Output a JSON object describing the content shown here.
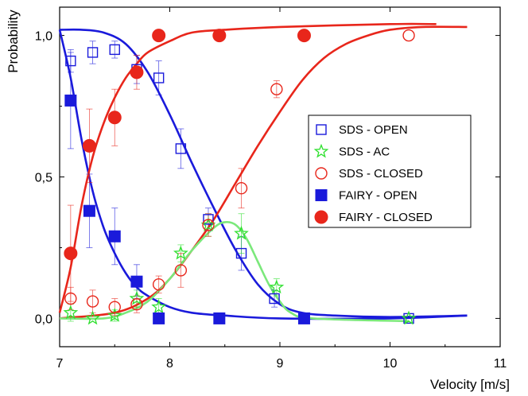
{
  "chart_data": {
    "type": "scatter",
    "title": "",
    "xlabel": "Velocity [m/s]",
    "ylabel": "Probability",
    "xlim": [
      7,
      11
    ],
    "ylim": [
      -0.1,
      1.1
    ],
    "x_ticks": [
      7,
      8,
      9,
      10,
      11
    ],
    "x_tick_labels": [
      "7",
      "8",
      "9",
      "10",
      "11"
    ],
    "y_ticks": [
      0.0,
      0.5,
      1.0
    ],
    "y_tick_labels": [
      "0,0",
      "0,5",
      "1,0"
    ],
    "grid": false,
    "legend_position": "center-right",
    "series": [
      {
        "name": "SDS - OPEN",
        "marker": "open-square",
        "color": "#1a1adb",
        "points": [
          {
            "x": 7.1,
            "y": 0.91,
            "err": 0.04
          },
          {
            "x": 7.3,
            "y": 0.94,
            "err": 0.04
          },
          {
            "x": 7.5,
            "y": 0.95,
            "err": 0.03
          },
          {
            "x": 7.7,
            "y": 0.88,
            "err": 0.05
          },
          {
            "x": 7.9,
            "y": 0.85,
            "err": 0.06
          },
          {
            "x": 8.1,
            "y": 0.6,
            "err": 0.07
          },
          {
            "x": 8.35,
            "y": 0.35,
            "err": 0.04
          },
          {
            "x": 8.65,
            "y": 0.23,
            "err": 0.06
          },
          {
            "x": 8.95,
            "y": 0.07,
            "err": 0.03
          },
          {
            "x": 10.17,
            "y": 0.0,
            "err": 0.0
          }
        ]
      },
      {
        "name": "SDS - AC",
        "marker": "open-star",
        "color": "#2ee02e",
        "points": [
          {
            "x": 7.1,
            "y": 0.02,
            "err": 0.03
          },
          {
            "x": 7.3,
            "y": 0.0,
            "err": 0.0
          },
          {
            "x": 7.5,
            "y": 0.01,
            "err": 0.02
          },
          {
            "x": 7.7,
            "y": 0.07,
            "err": 0.03
          },
          {
            "x": 7.9,
            "y": 0.04,
            "err": 0.03
          },
          {
            "x": 8.1,
            "y": 0.23,
            "err": 0.03
          },
          {
            "x": 8.35,
            "y": 0.33,
            "err": 0.04
          },
          {
            "x": 8.65,
            "y": 0.3,
            "err": 0.07
          },
          {
            "x": 8.97,
            "y": 0.11,
            "err": 0.03
          },
          {
            "x": 10.17,
            "y": 0.0,
            "err": 0.0
          }
        ]
      },
      {
        "name": "SDS - CLOSED",
        "marker": "open-circle",
        "color": "#e8261b",
        "points": [
          {
            "x": 7.1,
            "y": 0.07,
            "err": 0.04
          },
          {
            "x": 7.3,
            "y": 0.06,
            "err": 0.04
          },
          {
            "x": 7.5,
            "y": 0.04,
            "err": 0.03
          },
          {
            "x": 7.7,
            "y": 0.05,
            "err": 0.03
          },
          {
            "x": 7.9,
            "y": 0.12,
            "err": 0.03
          },
          {
            "x": 8.1,
            "y": 0.17,
            "err": 0.06
          },
          {
            "x": 8.35,
            "y": 0.33,
            "err": 0.04
          },
          {
            "x": 8.65,
            "y": 0.46,
            "err": 0.07
          },
          {
            "x": 8.97,
            "y": 0.81,
            "err": 0.03
          },
          {
            "x": 10.17,
            "y": 1.0,
            "err": 0.0
          }
        ]
      },
      {
        "name": "FAIRY - OPEN",
        "marker": "filled-square",
        "color": "#1a1adb",
        "points": [
          {
            "x": 7.1,
            "y": 0.77,
            "err": 0.17
          },
          {
            "x": 7.27,
            "y": 0.38,
            "err": 0.13
          },
          {
            "x": 7.5,
            "y": 0.29,
            "err": 0.1
          },
          {
            "x": 7.7,
            "y": 0.13,
            "err": 0.06
          },
          {
            "x": 7.9,
            "y": 0.0,
            "err": 0.0
          },
          {
            "x": 8.45,
            "y": 0.0,
            "err": 0.0
          },
          {
            "x": 9.22,
            "y": 0.0,
            "err": 0.0
          }
        ]
      },
      {
        "name": "FAIRY - CLOSED",
        "marker": "filled-circle",
        "color": "#e8261b",
        "points": [
          {
            "x": 7.1,
            "y": 0.23,
            "err": 0.17
          },
          {
            "x": 7.27,
            "y": 0.61,
            "err": 0.13
          },
          {
            "x": 7.5,
            "y": 0.71,
            "err": 0.1
          },
          {
            "x": 7.7,
            "y": 0.87,
            "err": 0.06
          },
          {
            "x": 7.9,
            "y": 1.0,
            "err": 0.0
          },
          {
            "x": 8.45,
            "y": 1.0,
            "err": 0.0
          },
          {
            "x": 9.22,
            "y": 1.0,
            "err": 0.0
          }
        ]
      }
    ],
    "fit_curves": [
      {
        "color": "#1a1adb",
        "points": [
          [
            7.0,
            1.02
          ],
          [
            7.2,
            1.02
          ],
          [
            7.4,
            1.01
          ],
          [
            7.6,
            0.97
          ],
          [
            7.8,
            0.87
          ],
          [
            8.0,
            0.72
          ],
          [
            8.2,
            0.55
          ],
          [
            8.4,
            0.39
          ],
          [
            8.6,
            0.24
          ],
          [
            8.8,
            0.12
          ],
          [
            9.0,
            0.05
          ],
          [
            9.2,
            0.02
          ],
          [
            9.5,
            0.01
          ],
          [
            10.0,
            0.005
          ],
          [
            10.7,
            0.01
          ]
        ]
      },
      {
        "color": "#1a1adb",
        "points": [
          [
            7.0,
            1.02
          ],
          [
            7.1,
            0.85
          ],
          [
            7.2,
            0.63
          ],
          [
            7.3,
            0.45
          ],
          [
            7.4,
            0.32
          ],
          [
            7.5,
            0.23
          ],
          [
            7.6,
            0.16
          ],
          [
            7.7,
            0.11
          ],
          [
            7.8,
            0.08
          ],
          [
            8.0,
            0.04
          ],
          [
            8.2,
            0.02
          ],
          [
            8.5,
            0.01
          ],
          [
            9.0,
            0.0
          ],
          [
            10.0,
            0.0
          ],
          [
            10.7,
            0.01
          ]
        ]
      },
      {
        "color": "#e8261b",
        "points": [
          [
            7.0,
            0.02
          ],
          [
            7.1,
            0.18
          ],
          [
            7.2,
            0.4
          ],
          [
            7.3,
            0.57
          ],
          [
            7.4,
            0.69
          ],
          [
            7.5,
            0.78
          ],
          [
            7.6,
            0.85
          ],
          [
            7.7,
            0.9
          ],
          [
            7.8,
            0.94
          ],
          [
            8.0,
            0.98
          ],
          [
            8.2,
            1.01
          ],
          [
            8.5,
            1.02
          ],
          [
            9.0,
            1.03
          ],
          [
            10.0,
            1.04
          ],
          [
            10.42,
            1.04
          ]
        ]
      },
      {
        "color": "#e8261b",
        "points": [
          [
            7.0,
            0.0
          ],
          [
            7.5,
            0.02
          ],
          [
            7.8,
            0.07
          ],
          [
            8.0,
            0.14
          ],
          [
            8.2,
            0.24
          ],
          [
            8.4,
            0.35
          ],
          [
            8.6,
            0.48
          ],
          [
            8.8,
            0.61
          ],
          [
            9.0,
            0.73
          ],
          [
            9.2,
            0.84
          ],
          [
            9.4,
            0.92
          ],
          [
            9.6,
            0.97
          ],
          [
            9.8,
            1.0
          ],
          [
            10.0,
            1.02
          ],
          [
            10.3,
            1.03
          ],
          [
            10.7,
            1.03
          ]
        ]
      },
      {
        "color": "#7be87b",
        "points": [
          [
            7.0,
            0.0
          ],
          [
            7.4,
            0.0
          ],
          [
            7.6,
            0.02
          ],
          [
            7.8,
            0.06
          ],
          [
            8.0,
            0.14
          ],
          [
            8.2,
            0.24
          ],
          [
            8.4,
            0.32
          ],
          [
            8.5,
            0.34
          ],
          [
            8.6,
            0.33
          ],
          [
            8.7,
            0.28
          ],
          [
            8.8,
            0.2
          ],
          [
            8.9,
            0.12
          ],
          [
            9.0,
            0.06
          ],
          [
            9.1,
            0.02
          ],
          [
            9.3,
            0.0
          ],
          [
            10.17,
            -0.01
          ]
        ]
      }
    ]
  }
}
